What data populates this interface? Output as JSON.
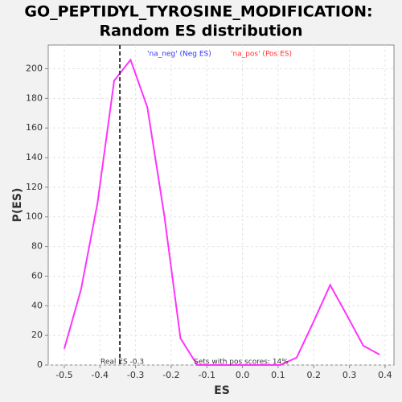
{
  "chart_data": {
    "type": "line",
    "title": [
      "GO_PEPTIDYL_TYROSINE_MODIFICATION:",
      "Random ES distribution"
    ],
    "xlabel": "ES",
    "ylabel": "P(ES)",
    "legend": [
      {
        "name": "'na_neg' (Neg ES)",
        "color": "#3333ff"
      },
      {
        "name": "'na_pos' (Pos ES)",
        "color": "#ff3333"
      }
    ],
    "annotations": [
      "Real ES -0.3",
      "Sets with pos scores: 14%"
    ],
    "real_es_line": -0.344,
    "x": [
      -0.5,
      -0.453,
      -0.407,
      -0.36,
      -0.314,
      -0.267,
      -0.22,
      -0.174,
      -0.127,
      -0.081,
      -0.034,
      0.013,
      0.059,
      0.106,
      0.152,
      0.199,
      0.246,
      0.292,
      0.339,
      0.385
    ],
    "series": [
      {
        "name": "P(ES)",
        "color": "#ff33ff",
        "values": [
          11,
          51,
          109,
          192,
          206,
          174,
          102,
          18,
          0,
          0,
          0,
          0,
          0,
          0,
          5,
          29,
          54,
          34,
          13,
          7
        ]
      }
    ],
    "xlim": [
      -0.545,
      0.425
    ],
    "ylim": [
      0,
      216
    ],
    "xticks": [
      -0.5,
      -0.4,
      -0.3,
      -0.2,
      -0.1,
      {
        "value": 0,
        "label": "0.0"
      },
      0.1,
      0.2,
      0.3,
      0.4
    ],
    "yticks": [
      0,
      20,
      40,
      60,
      80,
      100,
      120,
      140,
      160,
      180,
      200
    ],
    "grid": true
  }
}
